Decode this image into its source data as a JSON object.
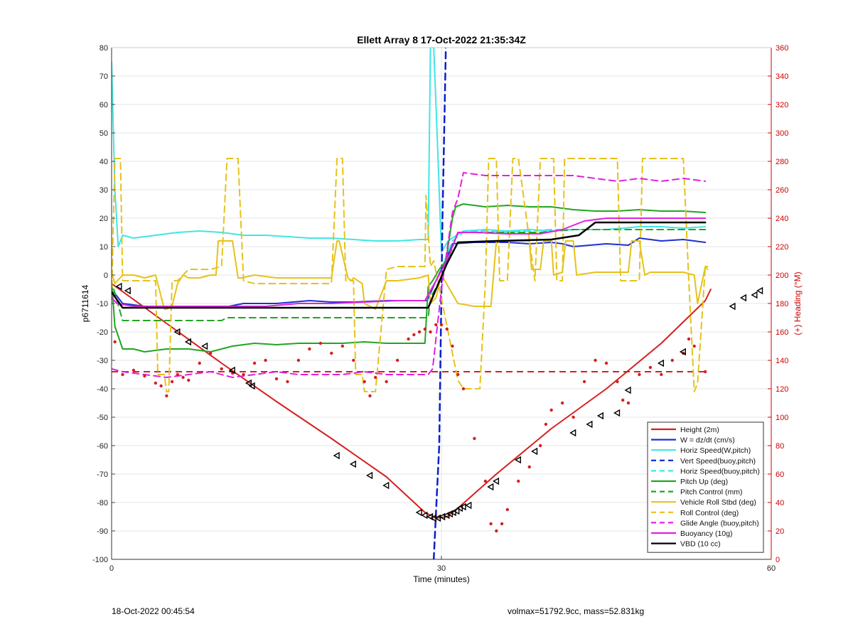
{
  "chart_data": {
    "type": "line",
    "title": "Ellett Array 8 17-Oct-2022 21:35:34Z",
    "xlabel": "Time (minutes)",
    "ylabel": "p6711614",
    "ylabel_right": "(+) Heading (°M)",
    "xlim": [
      0,
      60
    ],
    "ylim": [
      -100,
      80
    ],
    "ylim_right": [
      0,
      360
    ],
    "x_ticks": [
      "0",
      "30",
      "60"
    ],
    "y_ticks": [
      "80",
      "70",
      "60",
      "50",
      "40",
      "30",
      "20",
      "10",
      "0",
      "-10",
      "-20",
      "-30",
      "-40",
      "-50",
      "-60",
      "-70",
      "-80",
      "-90",
      "-100"
    ],
    "y_right_ticks": [
      "360",
      "340",
      "320",
      "300",
      "280",
      "260",
      "240",
      "220",
      "200",
      "180",
      "160",
      "140",
      "120",
      "100",
      "80",
      "60",
      "40",
      "20",
      "0"
    ],
    "grid": true,
    "legend_position": "bottom-right",
    "colors": {
      "red": "#d42020",
      "blue": "#1f2fd0",
      "cyan": "#3ee6e6",
      "navy": "#0a1fd0",
      "green": "#21a621",
      "gold": "#e6c21a",
      "magenta": "#e020e0",
      "black": "#000000",
      "right_axis": "#cc0000"
    },
    "series": [
      {
        "name": "Height (2m)",
        "color": "#d42020",
        "style": "solid",
        "width": 2,
        "x": [
          0,
          5,
          10,
          15,
          20,
          25,
          28.5,
          29.5,
          30.5,
          31.5,
          35,
          40,
          45,
          50,
          54,
          54.5
        ],
        "y": [
          -3,
          -17,
          -31,
          -44.5,
          -57.5,
          -71,
          -83.5,
          -85.5,
          -85,
          -82,
          -70,
          -54,
          -40,
          -24,
          -9,
          -5
        ]
      },
      {
        "name": "W = dz/dt (cm/s)",
        "color": "#1f2fd0",
        "style": "solid",
        "width": 2,
        "x": [
          0.2,
          1,
          2,
          3,
          5,
          7,
          10,
          12,
          15,
          18,
          20,
          22,
          25,
          28,
          28.7,
          29.5,
          30,
          31,
          33,
          36,
          38,
          40,
          41,
          42,
          45,
          47,
          48,
          50,
          52,
          54
        ],
        "y": [
          -6,
          -10,
          -10.5,
          -11,
          -11,
          -11.5,
          -11.5,
          -10,
          -10,
          -9,
          -9.5,
          -9.5,
          -9,
          -9,
          -9,
          -2,
          2,
          11,
          11.5,
          11.5,
          11,
          11.5,
          11,
          10,
          11,
          10.5,
          13,
          12,
          12.5,
          11.5
        ]
      },
      {
        "name": "Horiz Speed(W,pitch)",
        "color": "#3ee6e6",
        "style": "solid",
        "width": 2,
        "x": [
          0,
          0.3,
          0.6,
          1,
          2,
          4,
          6,
          8,
          10,
          12,
          14,
          16,
          18,
          20,
          22,
          24,
          26,
          28,
          28.8,
          29,
          29.3,
          29.7,
          30,
          30.6,
          32,
          34,
          36,
          38,
          40,
          42,
          45,
          48,
          50,
          52,
          54
        ],
        "y": [
          75,
          30,
          10,
          14,
          13,
          14,
          15,
          15.5,
          15,
          14,
          14,
          13.5,
          13,
          13,
          12.5,
          12,
          12,
          12.5,
          12.5,
          80,
          80,
          40,
          8,
          12,
          15.5,
          16,
          15.5,
          16,
          15.5,
          16,
          16,
          17,
          17,
          16.5,
          17
        ]
      },
      {
        "name": "Vert Speed(buoy,pitch)",
        "color": "#0a1fd0",
        "style": "dashed",
        "width": 2.5,
        "x": [
          29.3,
          29.8,
          30.1,
          30.4
        ],
        "y": [
          -100,
          -60,
          20,
          80
        ]
      },
      {
        "name": "Horiz Speed(buoy,pitch)",
        "color": "#3ee6e6",
        "style": "dashed",
        "width": 2,
        "x": [
          30.3,
          31,
          32,
          34,
          36,
          38,
          40,
          42
        ],
        "y": [
          5,
          12,
          15,
          15.5,
          15,
          15.5,
          16,
          16
        ]
      },
      {
        "name": "Pitch Up (deg)",
        "color": "#21a621",
        "style": "solid",
        "width": 2,
        "x": [
          0,
          0.3,
          1,
          2,
          3,
          5,
          7,
          9,
          11,
          13,
          15,
          17,
          19,
          21,
          23,
          25,
          27,
          28.5,
          28.8,
          29.2,
          29.8,
          30.4,
          31,
          31.3,
          32,
          34,
          36,
          38,
          40,
          42,
          44,
          46,
          48,
          50,
          52,
          54
        ],
        "y": [
          -2,
          -18,
          -26,
          -26,
          -27,
          -26,
          -26,
          -27,
          -25,
          -24,
          -24.5,
          -24,
          -24,
          -24,
          -23.5,
          -24,
          -24,
          -24,
          -4,
          -2,
          2,
          5,
          20,
          24,
          25,
          24,
          24.5,
          24,
          24,
          23,
          22.5,
          22.5,
          23,
          22.5,
          22.5,
          22
        ]
      },
      {
        "name": "Pitch Control (mm)",
        "color": "#21a621",
        "style": "dashed",
        "width": 2,
        "x": [
          0.2,
          1,
          2,
          5,
          7,
          9,
          10,
          10.5,
          12,
          14,
          16,
          18,
          20,
          22,
          24,
          26,
          28,
          28.8,
          29,
          30,
          31.5,
          33,
          36,
          39,
          42,
          45,
          48,
          51,
          54
        ],
        "y": [
          -5,
          -16,
          -16,
          -16,
          -16,
          -16,
          -16,
          -15,
          -15,
          -15,
          -15,
          -15,
          -15,
          -15,
          -15,
          -15,
          -15,
          -15,
          -8,
          -1,
          15,
          15,
          15,
          15,
          16,
          16,
          16,
          16,
          16
        ]
      },
      {
        "name": "Vehicle Roll Stbd (deg)",
        "color": "#e6c21a",
        "style": "solid",
        "width": 2,
        "x": [
          0,
          0.3,
          1,
          2,
          3,
          4,
          4.8,
          5,
          5.5,
          6,
          6.5,
          7,
          8,
          9,
          9.5,
          9.7,
          11,
          11.5,
          11.8,
          13,
          15,
          18,
          20,
          20.5,
          20.7,
          21.5,
          21.8,
          22,
          22.8,
          23,
          24,
          25,
          26,
          28,
          28.8,
          29,
          29.5,
          30,
          31.5,
          33,
          34.5,
          35,
          36,
          37,
          38,
          38.2,
          39,
          39.3,
          40,
          40.2,
          41,
          41.3,
          42,
          42.3,
          44,
          46,
          47,
          47.3,
          48,
          48.5,
          49,
          52,
          53,
          53.3,
          54,
          54.2
        ],
        "y": [
          1,
          -3,
          0,
          0,
          -1,
          0,
          -12,
          -12,
          -11,
          -3,
          0,
          -1,
          -1,
          0,
          0,
          12,
          12,
          -1,
          -1,
          0,
          -1,
          -1,
          -1,
          12,
          12,
          -1,
          -2,
          -1,
          -3,
          -10,
          -12,
          -2,
          -2,
          -1,
          0,
          -10,
          -8,
          0,
          -10,
          -11,
          -11,
          12,
          12,
          12,
          12,
          2,
          2,
          12,
          12,
          0,
          1,
          12,
          12,
          0,
          1,
          1,
          1,
          12,
          12,
          0,
          1,
          1,
          0,
          -10,
          3,
          3
        ]
      },
      {
        "name": "Roll Control (deg)",
        "color": "#e6c21a",
        "style": "dashed",
        "width": 2,
        "x": [
          0,
          0.3,
          0.8,
          1,
          1.2,
          1.5,
          4,
          4.2,
          4.8,
          5,
          5.2,
          5.5,
          6,
          7,
          8,
          9,
          10,
          10.5,
          11.5,
          12,
          13,
          16,
          18,
          20,
          20.5,
          21,
          21.3,
          22,
          22.2,
          22.8,
          23,
          24,
          25,
          26,
          28.5,
          28.6,
          29,
          29.3,
          31.5,
          32,
          33.5,
          34,
          34.3,
          35,
          35.3,
          36,
          36.5,
          37,
          38.5,
          39,
          40.2,
          40.5,
          41,
          41.2,
          46,
          46.3,
          48,
          48.3,
          52,
          52.5,
          53,
          53.3,
          54,
          54.2
        ],
        "y": [
          -8,
          41,
          41,
          -2,
          -2,
          -2,
          -2,
          -35,
          -35,
          -41,
          -41,
          -2,
          -2,
          2,
          2,
          2,
          3,
          41,
          41,
          -2,
          -3,
          -3,
          -3,
          -3,
          41,
          41,
          -2,
          -2,
          -35,
          -35,
          -41,
          -41,
          2,
          3,
          3,
          28,
          3,
          5,
          -37,
          -40,
          -40,
          -2,
          41,
          41,
          -2,
          -2,
          41,
          41,
          -2,
          41,
          41,
          -2,
          -2,
          41,
          41,
          -2,
          -2,
          41,
          41,
          -2,
          -41,
          -38,
          3,
          2
        ]
      },
      {
        "name": "Glide Angle (buoy,pitch)",
        "color": "#e020e0",
        "style": "dashed",
        "width": 2,
        "x": [
          0,
          1,
          3,
          5,
          7,
          9,
          11,
          13,
          15,
          17,
          19,
          21,
          23,
          25,
          27,
          28.8,
          29.2,
          30,
          31,
          31.5,
          32,
          34,
          36,
          38,
          40,
          42,
          44,
          46,
          48,
          50,
          52,
          54
        ],
        "y": [
          -33,
          -34,
          -35,
          -36,
          -35,
          -34,
          -36,
          -35,
          -34,
          -35,
          -35,
          -35,
          -34,
          -35,
          -35,
          -35,
          -33,
          -5,
          22,
          27,
          36,
          35,
          35,
          35,
          35,
          35,
          34,
          33,
          34,
          33,
          34,
          33
        ]
      },
      {
        "name": "Buoyancy (10g)",
        "color": "#e020e0",
        "style": "solid",
        "width": 2,
        "x": [
          0,
          0.5,
          2,
          5,
          8,
          11,
          14,
          17,
          20,
          23,
          26,
          28.5,
          29.5,
          30.5,
          31.5,
          33,
          36,
          39,
          41,
          43,
          45,
          48,
          51,
          54
        ],
        "y": [
          -8,
          -10,
          -11,
          -11,
          -11,
          -11,
          -11,
          -10,
          -10,
          -9.5,
          -9,
          -9,
          -2,
          5,
          15,
          15,
          14.5,
          14.5,
          16,
          19,
          20,
          20,
          20,
          20
        ]
      },
      {
        "name": "VBD (10 cc)",
        "color": "#000000",
        "style": "solid",
        "width": 2.5,
        "x": [
          0,
          1,
          5,
          10,
          15,
          20,
          25,
          28.8,
          29.5,
          30.5,
          31.5,
          35,
          40,
          42.5,
          44,
          48,
          54
        ],
        "y": [
          -6,
          -11.5,
          -11.5,
          -11.5,
          -11.5,
          -11.5,
          -11.5,
          -11.5,
          -5,
          4,
          11.5,
          12,
          12.5,
          14,
          18.5,
          18.5,
          18.5
        ]
      }
    ],
    "reference_line": {
      "color": "#d42020",
      "style": "dashed",
      "axis": "right",
      "value": 132
    },
    "heading_points": {
      "color": "#d42020",
      "axis": "right",
      "x": [
        0.3,
        1,
        2,
        3,
        4,
        4.5,
        5,
        5.5,
        6,
        6.5,
        7,
        8,
        9,
        10,
        11,
        12,
        13,
        14,
        15,
        16,
        17,
        18,
        19,
        20,
        21,
        22,
        23,
        23.5,
        24,
        25,
        26,
        27,
        27.5,
        28,
        28.5,
        29,
        29.5,
        30,
        30.5,
        31,
        31.5,
        32,
        33,
        34,
        34.5,
        35,
        35.5,
        36,
        37,
        38,
        39,
        39.5,
        40,
        41,
        42,
        43,
        44,
        45,
        46,
        46.5,
        47,
        48,
        49,
        50,
        51,
        52,
        52.5,
        53,
        54
      ],
      "y": [
        153,
        130,
        133,
        129,
        124,
        122,
        115,
        125,
        130,
        128,
        126,
        138,
        145,
        134,
        131,
        130,
        138,
        140,
        127,
        125,
        140,
        148,
        152,
        145,
        150,
        140,
        125,
        115,
        128,
        125,
        140,
        155,
        158,
        160,
        162,
        160,
        165,
        165,
        162,
        150,
        130,
        120,
        85,
        55,
        25,
        20,
        25,
        35,
        55,
        65,
        80,
        95,
        105,
        110,
        100,
        125,
        140,
        138,
        125,
        112,
        110,
        130,
        135,
        130,
        140,
        145,
        155,
        150,
        132
      ]
    },
    "markers": {
      "color": "#000000",
      "axis": "left",
      "shape": "triangle-left",
      "x": [
        0.7,
        1.5,
        6,
        7,
        8.5,
        11,
        12.5,
        12.8,
        20.5,
        22,
        23.5,
        25,
        28,
        28.5,
        29,
        29.3,
        29.7,
        30.1,
        30.5,
        30.8,
        31.1,
        31.4,
        31.7,
        32,
        32.5,
        34.5,
        35,
        37,
        38.5,
        42,
        43.5,
        44.5,
        46,
        47,
        50,
        52,
        56.5,
        57.5,
        58.5,
        59
      ],
      "y": [
        -4,
        -5.5,
        -20,
        -23.5,
        -25,
        -33.5,
        -38,
        -39,
        -63.5,
        -66.5,
        -70.5,
        -74,
        -83.5,
        -84.5,
        -85,
        -85.5,
        -85.5,
        -85,
        -84.5,
        -84,
        -83.5,
        -83,
        -82,
        -81.5,
        -81,
        -74.5,
        -72.5,
        -65,
        -62,
        -55.5,
        -52.5,
        -49.5,
        -48.5,
        -40.5,
        -31,
        -27,
        -11,
        -8,
        -7,
        -5.5
      ]
    },
    "legend": [
      {
        "label": "Height (2m)",
        "color": "#d42020",
        "style": "solid"
      },
      {
        "label": "W = dz/dt (cm/s)",
        "color": "#1f2fd0",
        "style": "solid"
      },
      {
        "label": "Horiz Speed(W,pitch)",
        "color": "#3ee6e6",
        "style": "solid"
      },
      {
        "label": "Vert Speed(buoy,pitch)",
        "color": "#0a1fd0",
        "style": "dashed"
      },
      {
        "label": "Horiz Speed(buoy,pitch)",
        "color": "#3ee6e6",
        "style": "dashed"
      },
      {
        "label": "Pitch Up (deg)",
        "color": "#21a621",
        "style": "solid"
      },
      {
        "label": "Pitch Control (mm)",
        "color": "#21a621",
        "style": "dashed"
      },
      {
        "label": "Vehicle Roll Stbd (deg)",
        "color": "#e6c21a",
        "style": "solid"
      },
      {
        "label": "Roll Control (deg)",
        "color": "#e6c21a",
        "style": "dashed"
      },
      {
        "label": "Glide Angle (buoy,pitch)",
        "color": "#e020e0",
        "style": "dashed"
      },
      {
        "label": "Buoyancy (10g)",
        "color": "#e020e0",
        "style": "solid"
      },
      {
        "label": "VBD (10 cc)",
        "color": "#000000",
        "style": "solid"
      }
    ]
  },
  "footer": {
    "left_text": "18-Oct-2022 00:45:54",
    "right_text": "volmax=51792.9cc, mass=52.831kg"
  }
}
